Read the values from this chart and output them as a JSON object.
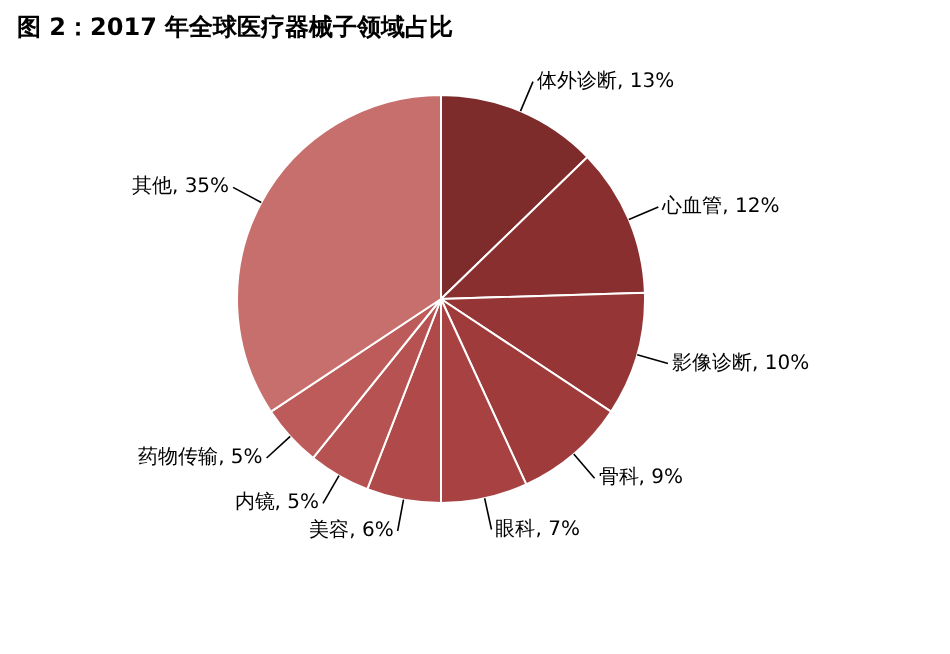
{
  "chart_data": {
    "type": "pie",
    "title": "图 2：2017 年全球医疗器械子领域占比",
    "categories": [
      "体外诊断",
      "心血管",
      "影像诊断",
      "骨科",
      "眼科",
      "美容",
      "内镜",
      "药物传输",
      "其他"
    ],
    "values": [
      13,
      12,
      10,
      9,
      7,
      6,
      5,
      5,
      35
    ],
    "value_labels": [
      "13%",
      "12%",
      "10%",
      "9%",
      "7%",
      "6%",
      "5%",
      "5%",
      "35%"
    ],
    "colors": [
      "#7e2b2b",
      "#8a2f2f",
      "#953535",
      "#9f3b3b",
      "#a84242",
      "#b04a4a",
      "#b75252",
      "#bd5b5b",
      "#c76f6c"
    ]
  }
}
